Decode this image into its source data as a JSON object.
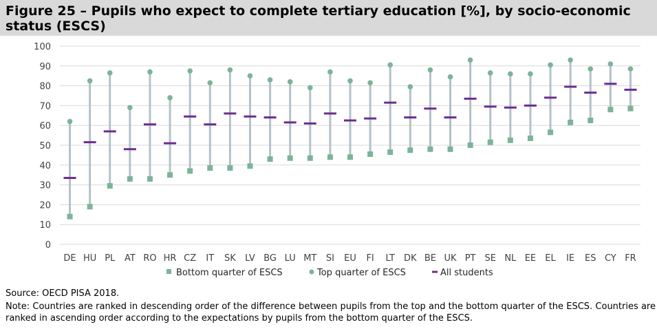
{
  "title": "Figure 25 – Pupils who expect to complete tertiary education [%], by socio-economic status (ESCS)",
  "source": "Source: OECD PISA 2018.",
  "note": "Note: Countries are ranked in descending order of the difference between pupils from the top and the bottom quarter of the ESCS. Countries are ranked in ascending order according to the expectations by pupils from the bottom quarter of the ESCS.",
  "colors": {
    "bottom": "#7db39a",
    "top": "#7db39a",
    "all": "#6a2c91",
    "range": "#b4c0c9",
    "grid": "#d9d9d9",
    "title_bg": "#d9d9d9"
  },
  "chart_data": {
    "type": "dot-range",
    "title": "Pupils who expect to complete tertiary education [%], by socio-economic status (ESCS)",
    "xlabel": "",
    "ylabel": "",
    "ylim": [
      0,
      100
    ],
    "yticks": [
      0,
      10,
      20,
      30,
      40,
      50,
      60,
      70,
      80,
      90,
      100
    ],
    "grid": true,
    "legend_position": "bottom",
    "categories": [
      "DE",
      "HU",
      "PL",
      "AT",
      "RO",
      "HR",
      "CZ",
      "IT",
      "SK",
      "LV",
      "BG",
      "LU",
      "MT",
      "SI",
      "EU",
      "FI",
      "LT",
      "DK",
      "BE",
      "UK",
      "PT",
      "SE",
      "NL",
      "EE",
      "EL",
      "IE",
      "ES",
      "CY",
      "FR"
    ],
    "series": [
      {
        "name": "Bottom quarter of ESCS",
        "marker": "square",
        "values": [
          14,
          19,
          29.5,
          33,
          33,
          35,
          37,
          38.5,
          38.5,
          39.5,
          43,
          43.5,
          43.5,
          44,
          44,
          45.5,
          46.5,
          47.5,
          48,
          48,
          50,
          51.5,
          52.5,
          53.5,
          56.5,
          61.5,
          62.5,
          68,
          68.5
        ]
      },
      {
        "name": "Top quarter of ESCS",
        "marker": "circle",
        "values": [
          62,
          82.5,
          86.5,
          69,
          87,
          74,
          87.5,
          81.5,
          88,
          85,
          83,
          82,
          79,
          87,
          82.5,
          81.5,
          90.5,
          79.5,
          88,
          84.5,
          93,
          86.5,
          86,
          86,
          90.5,
          93,
          88.5,
          91,
          88.5
        ]
      },
      {
        "name": "All students",
        "marker": "dash",
        "values": [
          33.5,
          51.5,
          57,
          48,
          60.5,
          51,
          64.5,
          60.5,
          66,
          64.5,
          64,
          61.5,
          61,
          66,
          62.5,
          63.5,
          71.5,
          64,
          68.5,
          64,
          73.5,
          69.5,
          69,
          70,
          74,
          79.5,
          76.5,
          81,
          78
        ]
      }
    ]
  }
}
